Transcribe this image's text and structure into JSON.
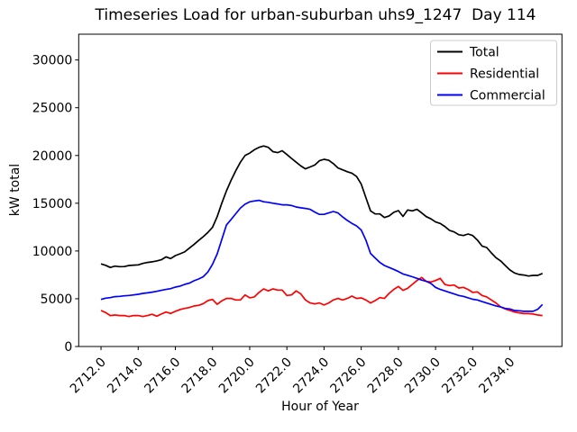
{
  "chart_data": {
    "type": "line",
    "title": "Timeseries Load for urban-suburban uhs9_1247  Day 114",
    "xlabel": "Hour of Year",
    "ylabel": "kW total",
    "xlim": [
      2710.8,
      2736.8
    ],
    "ylim": [
      0,
      32700
    ],
    "grid": false,
    "legend_position": "upper right",
    "xticks": {
      "values": [
        2712,
        2714,
        2716,
        2718,
        2720,
        2722,
        2724,
        2726,
        2728,
        2730,
        2732,
        2734
      ],
      "labels": [
        "2712.0",
        "2714.0",
        "2716.0",
        "2718.0",
        "2720.0",
        "2722.0",
        "2724.0",
        "2726.0",
        "2728.0",
        "2730.0",
        "2732.0",
        "2734.0"
      ]
    },
    "yticks": {
      "values": [
        0,
        5000,
        10000,
        15000,
        20000,
        25000,
        30000
      ],
      "labels": [
        "0",
        "5000",
        "10000",
        "15000",
        "20000",
        "25000",
        "30000"
      ]
    },
    "x_start": 2712.0,
    "x_step": 0.25,
    "series": [
      {
        "name": "Total",
        "color": "#000000",
        "values": [
          8650,
          8500,
          8270,
          8420,
          8360,
          8370,
          8480,
          8520,
          8550,
          8700,
          8800,
          8870,
          8960,
          9080,
          9390,
          9210,
          9520,
          9710,
          9900,
          10300,
          10680,
          11100,
          11500,
          11950,
          12480,
          13600,
          15000,
          16300,
          17400,
          18400,
          19300,
          20000,
          20250,
          20600,
          20850,
          21000,
          20850,
          20400,
          20300,
          20500,
          20100,
          19700,
          19300,
          18900,
          18600,
          18800,
          19000,
          19450,
          19600,
          19500,
          19150,
          18700,
          18500,
          18300,
          18150,
          17800,
          17000,
          15600,
          14200,
          13880,
          13880,
          13500,
          13670,
          14050,
          14230,
          13620,
          14300,
          14200,
          14360,
          13980,
          13600,
          13360,
          13040,
          12880,
          12570,
          12160,
          12000,
          11700,
          11620,
          11780,
          11620,
          11150,
          10520,
          10370,
          9800,
          9300,
          8960,
          8480,
          8010,
          7700,
          7540,
          7480,
          7380,
          7440,
          7440,
          7650
        ]
      },
      {
        "name": "Residential",
        "color": "#ff0000",
        "values": [
          3770,
          3550,
          3240,
          3300,
          3240,
          3240,
          3140,
          3240,
          3240,
          3140,
          3240,
          3370,
          3180,
          3400,
          3610,
          3460,
          3680,
          3870,
          3990,
          4080,
          4240,
          4310,
          4490,
          4810,
          4930,
          4420,
          4780,
          5030,
          5030,
          4870,
          4870,
          5400,
          5100,
          5190,
          5660,
          6030,
          5820,
          6030,
          5910,
          5910,
          5340,
          5400,
          5820,
          5500,
          4870,
          4560,
          4460,
          4560,
          4340,
          4560,
          4870,
          5030,
          4870,
          5030,
          5280,
          5030,
          5090,
          4870,
          4560,
          4810,
          5120,
          5030,
          5560,
          5970,
          6290,
          5880,
          6100,
          6500,
          6910,
          7230,
          6820,
          6760,
          6910,
          7130,
          6500,
          6380,
          6440,
          6130,
          6190,
          5970,
          5660,
          5720,
          5340,
          5190,
          4870,
          4560,
          4150,
          3930,
          3770,
          3610,
          3520,
          3450,
          3450,
          3400,
          3300,
          3240
        ]
      },
      {
        "name": "Commercial",
        "color": "#0000ff",
        "values": [
          4930,
          5060,
          5120,
          5220,
          5250,
          5310,
          5340,
          5400,
          5470,
          5560,
          5620,
          5690,
          5780,
          5880,
          5970,
          6060,
          6220,
          6320,
          6500,
          6630,
          6880,
          7070,
          7300,
          7800,
          8600,
          9700,
          11200,
          12730,
          13300,
          13900,
          14500,
          14900,
          15150,
          15240,
          15300,
          15150,
          15100,
          15000,
          14930,
          14830,
          14830,
          14770,
          14610,
          14520,
          14460,
          14360,
          14080,
          13830,
          13830,
          13980,
          14140,
          13980,
          13570,
          13200,
          12890,
          12630,
          12190,
          11150,
          9740,
          9270,
          8800,
          8480,
          8270,
          8080,
          7850,
          7600,
          7450,
          7300,
          7130,
          6950,
          6820,
          6600,
          6190,
          5970,
          5820,
          5660,
          5500,
          5340,
          5250,
          5100,
          4950,
          4870,
          4700,
          4550,
          4400,
          4250,
          4150,
          3990,
          3930,
          3770,
          3740,
          3680,
          3680,
          3680,
          3900,
          4400
        ]
      }
    ]
  }
}
